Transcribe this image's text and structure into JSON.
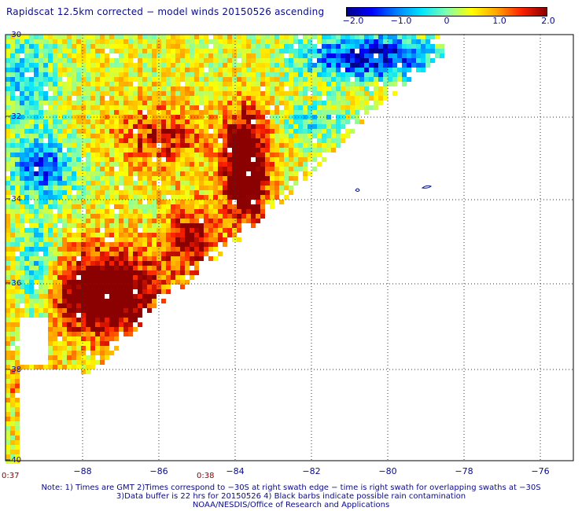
{
  "title": "Rapidscat 12.5km corrected − model winds 20150526 ascending",
  "colorbar": {
    "labels": [
      "−2.0",
      "−1.0",
      "0",
      "1.0",
      "2.0"
    ],
    "min": -2.0,
    "max": 2.0,
    "colors": [
      "#00008b",
      "#0000ff",
      "#0080ff",
      "#00e5ff",
      "#7fffb0",
      "#ffff00",
      "#ffa500",
      "#ff2000",
      "#8b0000"
    ]
  },
  "map": {
    "lon_ticks": [
      "−88",
      "−86",
      "−84",
      "−82",
      "−80",
      "−78",
      "−76"
    ],
    "lat_ticks": [
      "−30",
      "−32",
      "−34",
      "−36",
      "−38",
      "−40"
    ],
    "lon_range": [
      -90,
      -75.5
    ],
    "lat_range": [
      -40,
      -30
    ],
    "time_marks": [
      "0:37",
      "0:38"
    ]
  },
  "notes": [
    "Note: 1) Times are GMT 2)Times correspond to −30S at right swath edge − time is right swath for overlapping swaths at −30S",
    "3)Data buffer is 22 hrs for 20150526 4) Black barbs indicate possible rain contamination",
    "NOAA/NESDIS/Office of Research and Applications"
  ]
}
